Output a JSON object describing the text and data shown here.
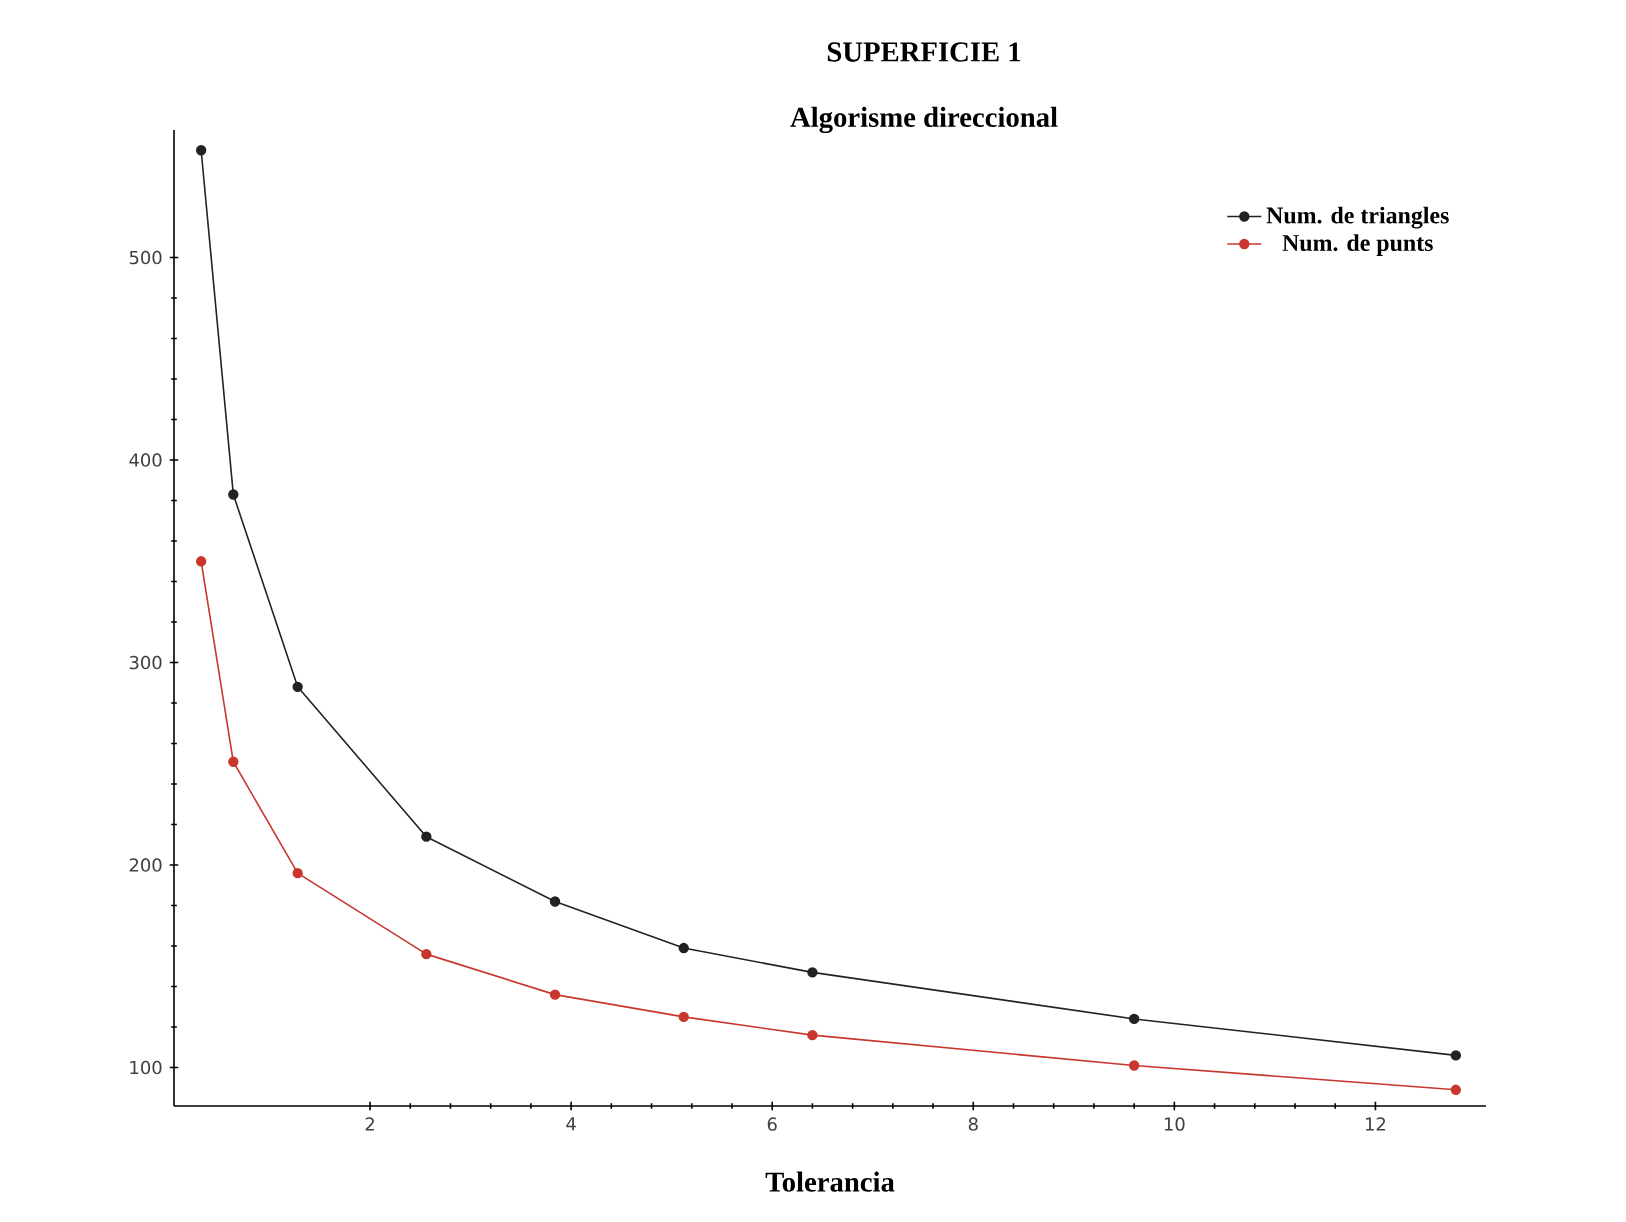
{
  "chart_data": {
    "type": "line",
    "title": "SUPERFICIE 1",
    "subtitle": "Algorisme direccional",
    "xlabel": "Tolerancia",
    "x": [
      0.32,
      0.64,
      1.28,
      2.56,
      3.84,
      5.12,
      6.4,
      9.6,
      12.8
    ],
    "series": [
      {
        "name": "Num. de triangles",
        "color": "#222222",
        "values": [
          553,
          383,
          288,
          214,
          182,
          159,
          147,
          124,
          106
        ]
      },
      {
        "name": "Num. de punts",
        "color": "#c8372d",
        "values": [
          350,
          251,
          196,
          156,
          136,
          125,
          116,
          101,
          89
        ]
      }
    ],
    "xlim": [
      0.05,
      13.1
    ],
    "ylim": [
      81,
      563
    ],
    "xticks": [
      2,
      4,
      6,
      8,
      10,
      12
    ],
    "yticks": [
      100,
      200,
      300,
      400,
      500
    ],
    "grid": false,
    "legend": "top right",
    "marker": "circle",
    "line_style": "solid"
  }
}
